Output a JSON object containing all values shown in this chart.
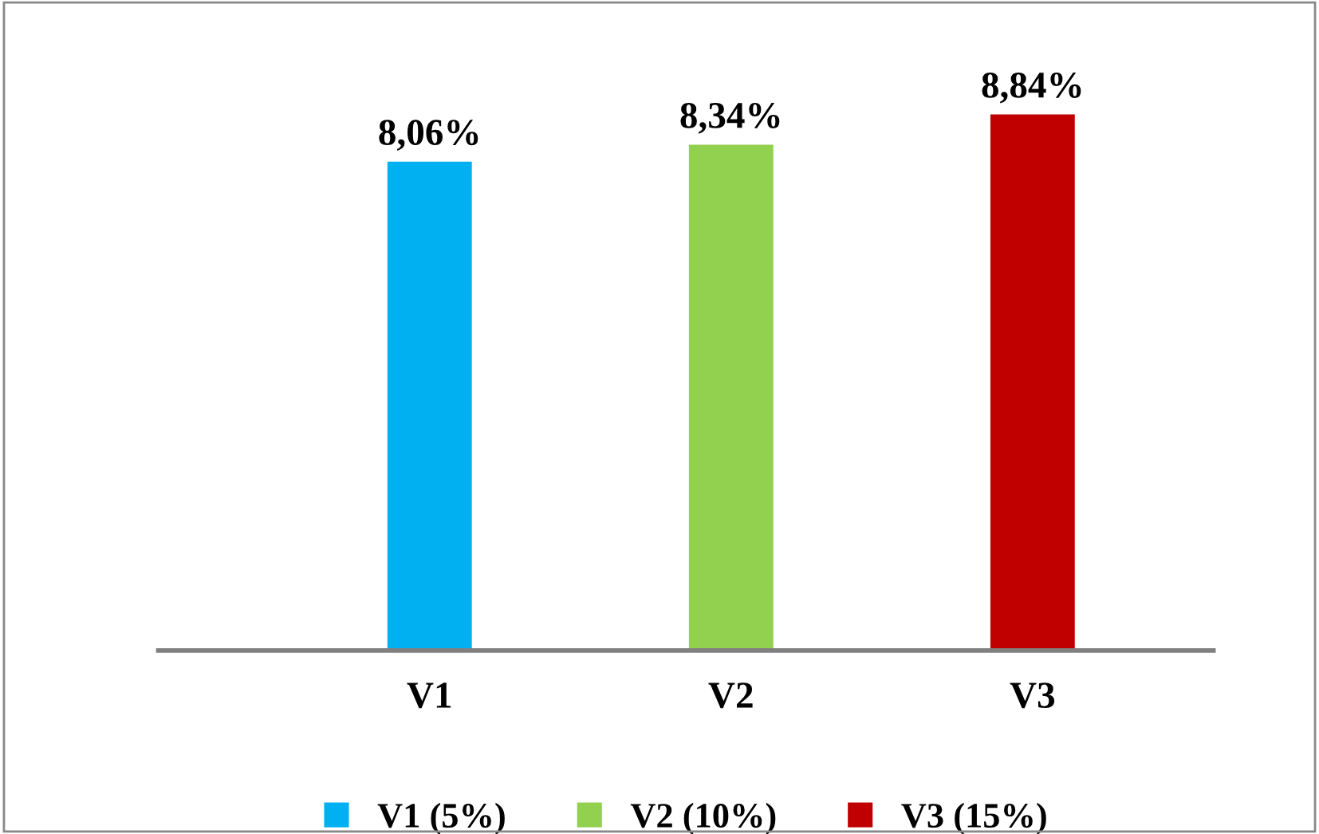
{
  "chart_data": {
    "type": "bar",
    "categories": [
      "V1",
      "V2",
      "V3"
    ],
    "series": [
      {
        "name": "V1 (5%)",
        "color": "#00b0f0",
        "values": [
          8.06,
          null,
          null
        ],
        "value_labels": [
          "8,06%",
          null,
          null
        ]
      },
      {
        "name": "V2 (10%)",
        "color": "#92d050",
        "values": [
          null,
          8.34,
          null
        ],
        "value_labels": [
          null,
          "8,34%",
          null
        ]
      },
      {
        "name": "V3 (15%)",
        "color": "#c00000",
        "values": [
          null,
          null,
          8.84
        ],
        "value_labels": [
          null,
          null,
          "8,84%"
        ]
      }
    ],
    "grid": false,
    "legend": "bottom",
    "tick_labels": "x"
  }
}
